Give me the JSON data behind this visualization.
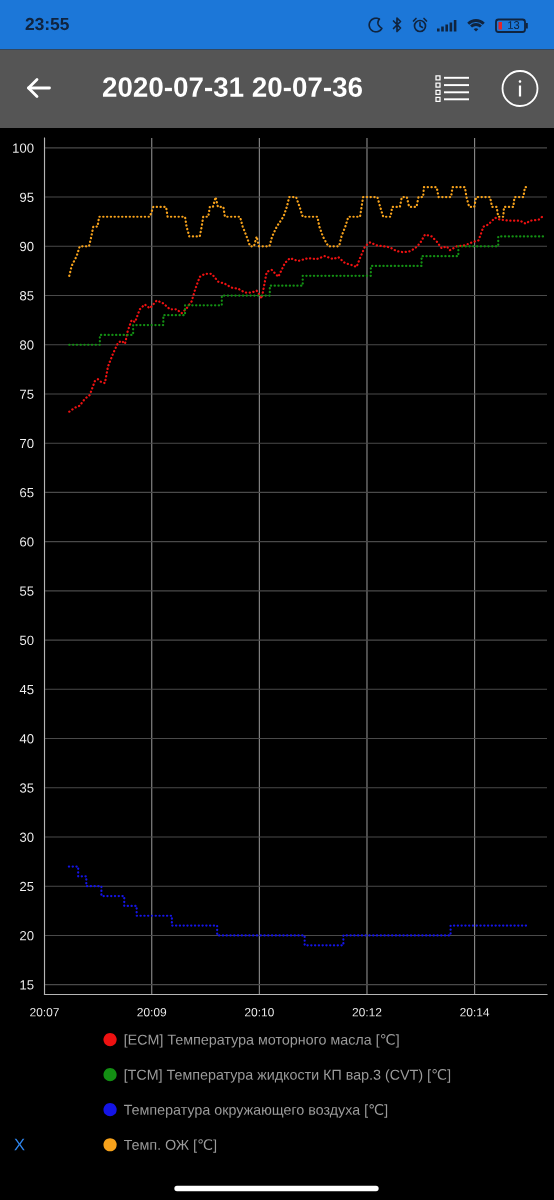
{
  "chart_data": {
    "type": "line",
    "title": "2020-07-31 20-07-36",
    "annotations": [
      "23:55",
      "13",
      "X"
    ],
    "xlim": [
      20.1167,
      20.2465
    ],
    "xticks": [
      {
        "value": 20.1167,
        "label": "20:07"
      },
      {
        "value": 20.1444,
        "label": "20:09"
      },
      {
        "value": 20.1722,
        "label": "20:10"
      },
      {
        "value": 20.2,
        "label": "20:12"
      },
      {
        "value": 20.2278,
        "label": "20:14"
      }
    ],
    "ylim": [
      14,
      101
    ],
    "yticks": [
      15,
      20,
      25,
      30,
      35,
      40,
      45,
      50,
      55,
      60,
      65,
      70,
      75,
      80,
      85,
      90,
      95,
      100
    ],
    "grid": true,
    "legend": "bottom",
    "line_style": "dotted",
    "series": [
      {
        "name": "[ECM] Температура моторного масла [℃]",
        "color": "#ee1111",
        "x": [
          20.1231,
          20.1245,
          20.1258,
          20.1271,
          20.1284,
          20.1297,
          20.1305,
          20.1314,
          20.1323,
          20.1331,
          20.1344,
          20.1357,
          20.1366,
          20.1375,
          20.1382,
          20.1392,
          20.1401,
          20.1413,
          20.1426,
          20.1439,
          20.1457,
          20.1474,
          20.1491,
          20.1508,
          20.1521,
          20.1534,
          20.1547,
          20.1556,
          20.1568,
          20.1581,
          20.1599,
          20.1616,
          20.1633,
          20.165,
          20.1667,
          20.1685,
          20.1702,
          20.1715,
          20.1728,
          20.1741,
          20.1754,
          20.1771,
          20.1788,
          20.1801,
          20.1822,
          20.1848,
          20.187,
          20.1891,
          20.1913,
          20.1926,
          20.1943,
          20.196,
          20.1973,
          20.1982,
          20.1995,
          20.2008,
          20.2025,
          20.2042,
          20.2059,
          20.2077,
          20.2094,
          20.2111,
          20.2124,
          20.2137,
          20.215,
          20.2167,
          20.218,
          20.2193,
          20.2206,
          20.2214,
          20.2232,
          20.2253,
          20.2271,
          20.2288,
          20.2301,
          20.2313,
          20.2331,
          20.2344,
          20.237,
          20.2395,
          20.241,
          20.2421,
          20.2443,
          20.2456
        ],
        "values": [
          73.2,
          73.6,
          73.8,
          74.5,
          74.9,
          76.3,
          76.5,
          76.2,
          76.1,
          77.8,
          79.1,
          80.2,
          80.4,
          80.1,
          81.4,
          82.5,
          82.3,
          83.6,
          84.1,
          83.7,
          84.5,
          84.2,
          83.6,
          83.6,
          83.2,
          83.7,
          84.4,
          85.6,
          86.9,
          87.2,
          87.2,
          86.4,
          86.2,
          85.8,
          85.7,
          85.3,
          85.3,
          85.5,
          84.7,
          87.4,
          87.6,
          86.9,
          88.3,
          88.8,
          88.5,
          88.8,
          88.7,
          89.0,
          88.7,
          88.9,
          88.3,
          88.1,
          87.9,
          88.8,
          90.0,
          90.4,
          90.1,
          90.0,
          89.9,
          89.5,
          89.4,
          89.5,
          89.8,
          90.3,
          91.2,
          91.0,
          90.5,
          89.8,
          90.0,
          89.6,
          90.0,
          90.1,
          90.4,
          90.6,
          92.0,
          92.2,
          92.9,
          92.7,
          92.6,
          92.6,
          92.3,
          92.6,
          92.7,
          93.1
        ]
      },
      {
        "name": "[TCM] Температура жидкости КП вар.3 (CVT) [℃]",
        "type": "step",
        "color": "#138f13",
        "x": [
          20.1231,
          20.131,
          20.1396,
          20.1474,
          20.153,
          20.1625,
          20.1749,
          20.1834,
          20.201,
          20.2141,
          20.2236,
          20.2339,
          20.246
        ],
        "values": [
          80,
          81,
          82,
          83,
          84,
          85,
          86,
          87,
          88,
          89,
          90,
          91,
          91
        ]
      },
      {
        "name": "Температура окружающего воздуха [℃]",
        "type": "step",
        "color": "#1414e6",
        "x": [
          20.123,
          20.1254,
          20.1275,
          20.1314,
          20.1373,
          20.1405,
          20.1496,
          20.1613,
          20.1839,
          20.1939,
          20.2216,
          20.2415
        ],
        "values": [
          27,
          26,
          25,
          24,
          23,
          22,
          21,
          20,
          19,
          20,
          21,
          21
        ]
      },
      {
        "name": "Темп. ОЖ [℃]",
        "color": "#f7a21b",
        "x": [
          20.1231,
          20.1237,
          20.125,
          20.1258,
          20.1282,
          20.1288,
          20.1293,
          20.1304,
          20.1308,
          20.1439,
          20.1448,
          20.1481,
          20.1485,
          20.153,
          20.1534,
          20.1541,
          20.1568,
          20.1573,
          20.1577,
          20.159,
          20.1594,
          20.1602,
          20.1609,
          20.1615,
          20.1629,
          20.1633,
          20.1672,
          20.1679,
          20.1689,
          20.1698,
          20.1708,
          20.1715,
          20.1721,
          20.1748,
          20.1755,
          20.1767,
          20.1784,
          20.1793,
          20.1799,
          20.1817,
          20.1826,
          20.1834,
          20.1872,
          20.1877,
          20.1886,
          20.19,
          20.1928,
          20.1934,
          20.1944,
          20.1952,
          20.1982,
          20.1986,
          20.199,
          20.2027,
          20.2034,
          20.2042,
          20.2061,
          20.2065,
          20.2085,
          20.209,
          20.2103,
          20.2109,
          20.2128,
          20.2133,
          20.2145,
          20.2147,
          20.218,
          20.2185,
          20.2217,
          20.2221,
          20.2253,
          20.2257,
          20.2264,
          20.2277,
          20.2282,
          20.2318,
          20.2323,
          20.2335,
          20.2339,
          20.2352,
          20.2354,
          20.2378,
          20.2381,
          20.2404,
          20.2408,
          20.2414
        ],
        "values": [
          87,
          88,
          89,
          90,
          90,
          91,
          92,
          92,
          93,
          93,
          94,
          94,
          93,
          93,
          92,
          91,
          91,
          92,
          93,
          93,
          94,
          94,
          95,
          94,
          94,
          93,
          93,
          92,
          91,
          90,
          90,
          91,
          90,
          90,
          91,
          92,
          93,
          94,
          95,
          95,
          94,
          93,
          93,
          92,
          91,
          90,
          90,
          91,
          92,
          93,
          93,
          94,
          95,
          95,
          94,
          93,
          93,
          94,
          94,
          95,
          95,
          94,
          94,
          95,
          95,
          96,
          96,
          95,
          95,
          96,
          96,
          95,
          94,
          94,
          95,
          95,
          94,
          94,
          93,
          93,
          94,
          94,
          95,
          95,
          96,
          96
        ]
      }
    ]
  }
}
